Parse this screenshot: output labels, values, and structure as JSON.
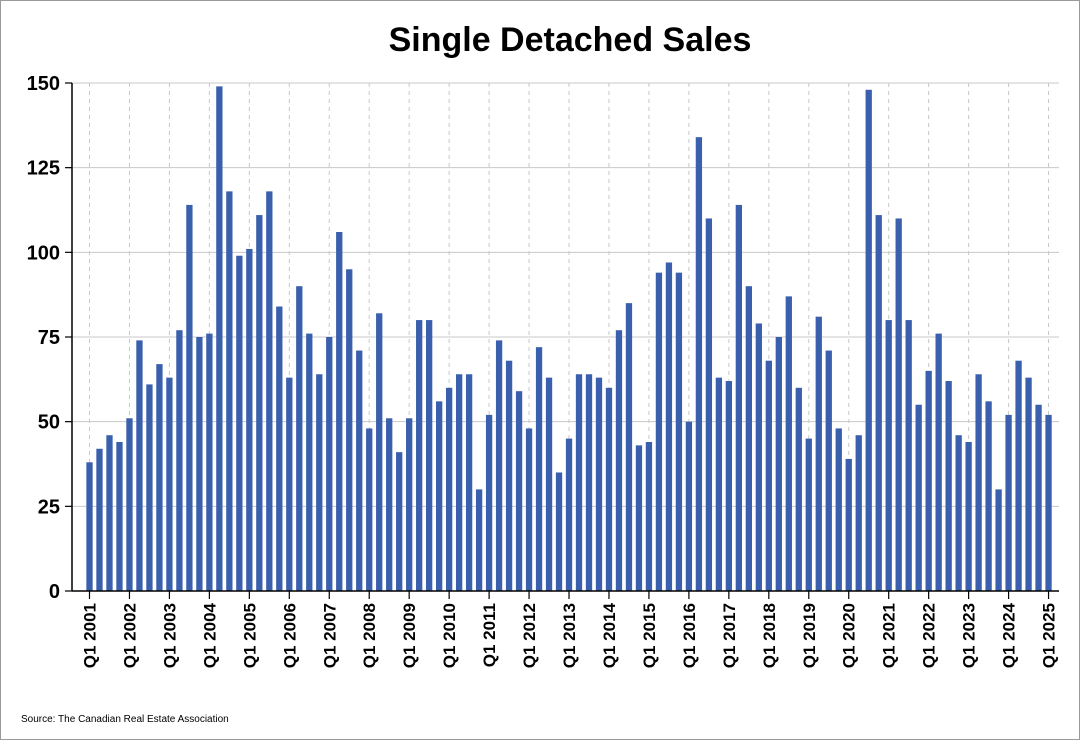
{
  "chart_data": {
    "type": "bar",
    "title": "Single Detached Sales",
    "xlabel": "",
    "ylabel": "",
    "ylim": [
      0,
      150
    ],
    "yticks": [
      0,
      25,
      50,
      75,
      100,
      125,
      150
    ],
    "grid": {
      "horizontal": true,
      "vertical_dashed": true
    },
    "legend": "none",
    "bar_color": "#3a5fad",
    "tick_labels": [
      "Q1 2001",
      "Q1 2002",
      "Q1 2003",
      "Q1 2004",
      "Q1 2005",
      "Q1 2006",
      "Q1 2007",
      "Q1 2008",
      "Q1 2009",
      "Q1 2010",
      "Q1 2011",
      "Q1 2012",
      "Q1 2013",
      "Q1 2014",
      "Q1 2015",
      "Q1 2016",
      "Q1 2017",
      "Q1 2018",
      "Q1 2019",
      "Q1 2020",
      "Q1 2021",
      "Q1 2022",
      "Q1 2023",
      "Q1 2024",
      "Q1 2025"
    ],
    "start": {
      "year": 2001,
      "quarter": 1
    },
    "values": [
      38,
      42,
      46,
      44,
      51,
      74,
      61,
      67,
      63,
      77,
      114,
      75,
      76,
      149,
      118,
      99,
      101,
      111,
      118,
      84,
      63,
      90,
      76,
      64,
      75,
      106,
      95,
      71,
      48,
      82,
      51,
      41,
      51,
      80,
      80,
      56,
      60,
      64,
      64,
      30,
      52,
      74,
      68,
      59,
      48,
      72,
      63,
      35,
      45,
      64,
      64,
      63,
      60,
      77,
      85,
      43,
      44,
      94,
      97,
      94,
      50,
      134,
      110,
      63,
      62,
      114,
      90,
      79,
      68,
      75,
      87,
      60,
      45,
      81,
      71,
      48,
      39,
      46,
      148,
      111,
      80,
      110,
      80,
      55,
      65,
      76,
      62,
      46,
      44,
      64,
      56,
      30,
      52,
      68,
      63,
      55,
      52
    ]
  },
  "source": "Source: The Canadian Real Estate Association"
}
